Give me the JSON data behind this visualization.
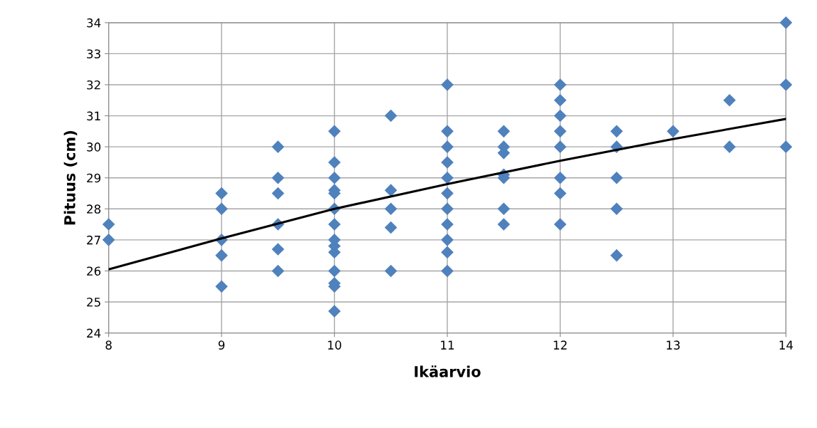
{
  "chart_data": {
    "type": "scatter",
    "xlabel": "Ikäarvio",
    "ylabel": "Pituus (cm)",
    "xlim": [
      8,
      14
    ],
    "xticks": [
      8,
      9,
      10,
      11,
      12,
      13,
      14
    ],
    "ylim": [
      24,
      34
    ],
    "yticks": [
      24,
      25,
      26,
      27,
      28,
      29,
      30,
      31,
      32,
      33,
      34
    ],
    "grid": true,
    "legend": false,
    "series": [
      {
        "color": "#4f81bd",
        "marker": "diamond",
        "x": [
          8,
          8,
          9,
          9,
          9,
          9,
          9,
          9.5,
          9.5,
          9.5,
          9.5,
          9.5,
          9.5,
          10,
          10,
          10,
          10,
          10,
          10,
          10,
          10,
          10,
          10,
          10,
          10,
          10,
          10,
          10.5,
          10.5,
          10.5,
          10.5,
          10.5,
          11,
          11,
          11,
          11,
          11,
          11,
          11,
          11,
          11,
          11,
          11,
          11.5,
          11.5,
          11.5,
          11.5,
          11.5,
          11.5,
          11.5,
          12,
          12,
          12,
          12,
          12,
          12,
          12,
          12,
          12.5,
          12.5,
          12.5,
          12.5,
          12.5,
          13,
          13.5,
          13.5,
          14,
          14,
          14
        ],
        "values": [
          27.5,
          27,
          28.5,
          28,
          27,
          26.5,
          25.5,
          30,
          29,
          28.5,
          27.5,
          26.7,
          26,
          30.5,
          29.5,
          29,
          28.6,
          28.5,
          28,
          27.5,
          27,
          26.8,
          26.6,
          26,
          25.6,
          25.5,
          24.7,
          31,
          28.6,
          28,
          27.4,
          26,
          32,
          30.5,
          30,
          29.5,
          29,
          28.5,
          28,
          27.5,
          27,
          26.6,
          26,
          30.5,
          30,
          29.8,
          29.1,
          29,
          28,
          27.5,
          32,
          31.5,
          31,
          30.5,
          30,
          29,
          28.5,
          27.5,
          30.5,
          30,
          29,
          28,
          26.5,
          30.5,
          31.5,
          30,
          34,
          32,
          30
        ]
      },
      {
        "type": "line",
        "color": "#000000",
        "line_style": "solid",
        "marker": "none",
        "x": [
          8,
          9,
          10,
          11,
          12,
          13,
          14
        ],
        "values": [
          26.05,
          27.05,
          28.0,
          28.8,
          29.55,
          30.25,
          30.9
        ]
      }
    ]
  }
}
